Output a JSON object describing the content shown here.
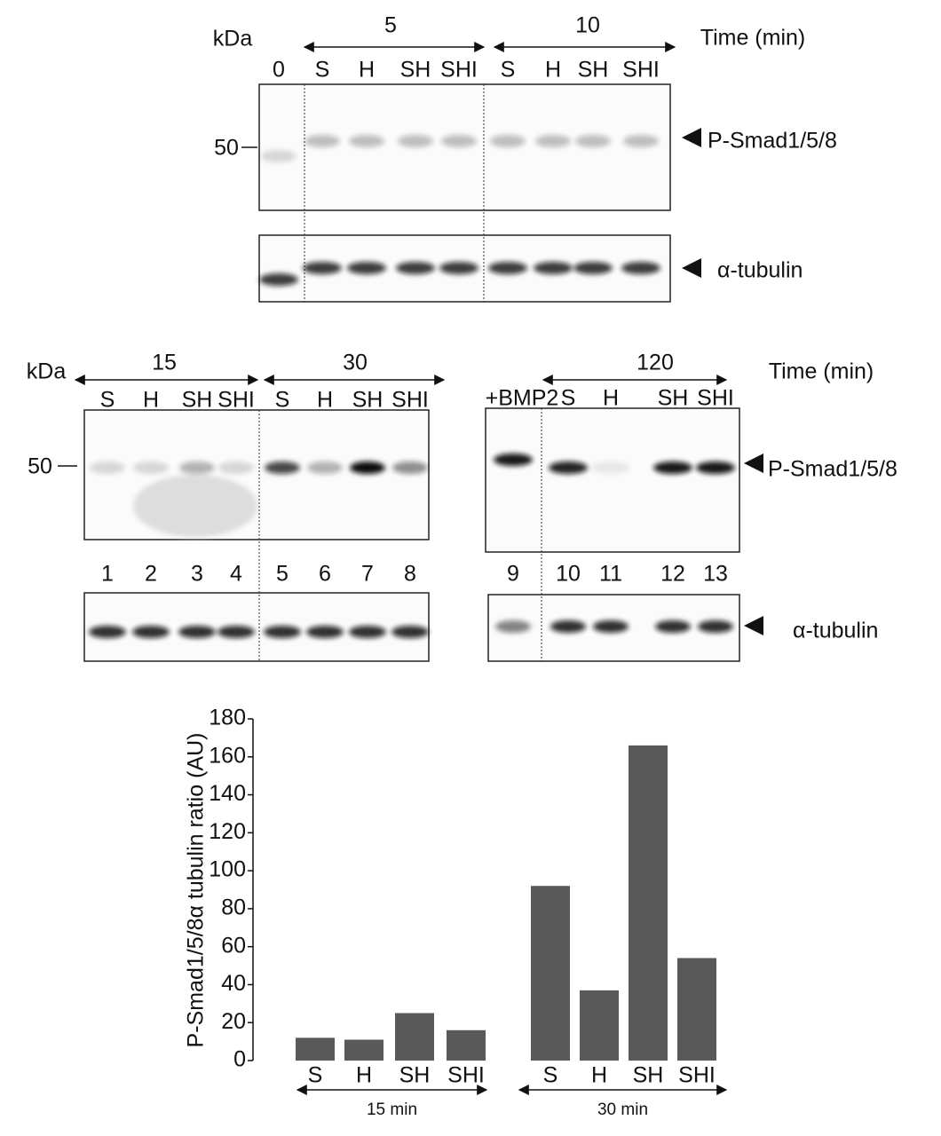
{
  "panel_a": {
    "kda": "kDa",
    "time_groups": [
      "5",
      "10"
    ],
    "time_label": "Time (min)",
    "lanes": [
      "0",
      "S",
      "H",
      "SH",
      "SHI",
      "S",
      "H",
      "SH",
      "SHI"
    ],
    "marker": "50",
    "band_labels": [
      "P-Smad1/5/8",
      "α-tubulin"
    ]
  },
  "panel_b": {
    "kda": "kDa",
    "time_groups": [
      "15",
      "30"
    ],
    "lanes": [
      "S",
      "H",
      "SH",
      "SHI",
      "S",
      "H",
      "SH",
      "SHI"
    ],
    "marker": "50",
    "lane_numbers": [
      "1",
      "2",
      "3",
      "4",
      "5",
      "6",
      "7",
      "8"
    ]
  },
  "panel_c": {
    "time_groups": [
      "120"
    ],
    "time_label": "Time (min)",
    "lanes": [
      "+BMP2",
      "S",
      "H",
      "SH",
      "SHI"
    ],
    "band_labels": [
      "P-Smad1/5/8",
      "α-tubulin"
    ],
    "lane_numbers": [
      "9",
      "10",
      "11",
      "12",
      "13"
    ]
  },
  "chart_data": {
    "type": "bar",
    "ylabel": "P-Smad1/5/8α tubulin ratio (AU)",
    "categories": [
      "S",
      "H",
      "SH",
      "SHI",
      "S",
      "H",
      "SH",
      "SHI"
    ],
    "groups": [
      "15 min",
      "30 min"
    ],
    "values": [
      12,
      11,
      25,
      16,
      92,
      37,
      166,
      54
    ],
    "color": "#595959",
    "ylim": [
      0,
      180
    ],
    "yticks": [
      0,
      20,
      40,
      60,
      80,
      100,
      120,
      140,
      160,
      180
    ]
  }
}
